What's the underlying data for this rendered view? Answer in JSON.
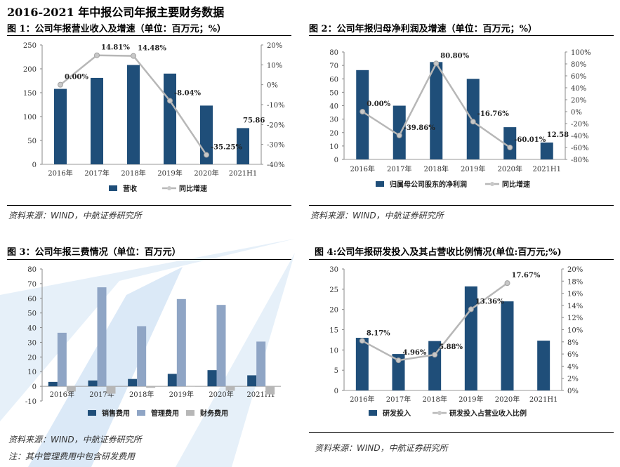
{
  "page": {
    "title": "2016-2021 年中报公司年报主要财务数据"
  },
  "colors": {
    "bar": "#1f4e79",
    "line": "#b7b7b7",
    "mgmt": "#8fa5c5",
    "fin": "#b7b7b7",
    "bg_shape": "#c5dcf1"
  },
  "chart_data": [
    {
      "id": "fig1",
      "type": "bar-line",
      "title": "图 1：公司年报营业收入及增速（单位：百万元；%）",
      "categories": [
        "2016年",
        "2017年",
        "2018年",
        "2019年",
        "2020年",
        "2021H1"
      ],
      "series": [
        {
          "name": "营收",
          "type": "bar",
          "axis": "left",
          "values": [
            158,
            181,
            208,
            190,
            123,
            75.86
          ]
        },
        {
          "name": "同比增速",
          "type": "line",
          "axis": "right",
          "values": [
            0.0,
            14.81,
            14.48,
            -8.04,
            -35.25,
            null
          ]
        }
      ],
      "data_labels": [
        {
          "series": 1,
          "index": 0,
          "text": "0.00%"
        },
        {
          "series": 1,
          "index": 1,
          "text": "14.81%"
        },
        {
          "series": 1,
          "index": 2,
          "text": "14.48%"
        },
        {
          "series": 1,
          "index": 3,
          "text": "-8.04%"
        },
        {
          "series": 1,
          "index": 4,
          "text": "-35.25%"
        },
        {
          "series": 0,
          "index": 5,
          "text": "75.86"
        }
      ],
      "y_left": {
        "min": 0,
        "max": 250,
        "ticks": [
          "0",
          "50",
          "100",
          "150",
          "200",
          "250"
        ]
      },
      "y_right": {
        "min": -40,
        "max": 20,
        "ticks": [
          "-40%",
          "-30%",
          "-20%",
          "-10%",
          "0%",
          "10%",
          "20%"
        ]
      },
      "legend": "bottom",
      "source": "资料来源：WIND，中航证券研究所"
    },
    {
      "id": "fig2",
      "type": "bar-line",
      "title": "图 2：公司年报归母净利润及增速（单位：百万元；%）",
      "categories": [
        "2016年",
        "2017年",
        "2018年",
        "2019年",
        "2020年",
        "2021H1"
      ],
      "series": [
        {
          "name": "归属母公司股东的净利润",
          "type": "bar",
          "axis": "left",
          "values": [
            66.5,
            40,
            72.5,
            60,
            24,
            12.58
          ]
        },
        {
          "name": "同比增速",
          "type": "line",
          "axis": "right",
          "values": [
            0.0,
            -39.86,
            80.8,
            -16.76,
            -60.01,
            null
          ]
        }
      ],
      "data_labels": [
        {
          "series": 1,
          "index": 0,
          "text": "0.00%"
        },
        {
          "series": 1,
          "index": 1,
          "text": "-39.86%"
        },
        {
          "series": 1,
          "index": 2,
          "text": "80.80%"
        },
        {
          "series": 1,
          "index": 3,
          "text": "-16.76%"
        },
        {
          "series": 1,
          "index": 4,
          "text": "-60.01%"
        },
        {
          "series": 0,
          "index": 5,
          "text": "12.58"
        }
      ],
      "y_left": {
        "min": 0,
        "max": 80,
        "ticks": [
          "0",
          "10",
          "20",
          "30",
          "40",
          "50",
          "60",
          "70",
          "80"
        ]
      },
      "y_right": {
        "min": -80,
        "max": 100,
        "ticks": [
          "-80%",
          "-60%",
          "-40%",
          "-20%",
          "0%",
          "20%",
          "40%",
          "60%",
          "80%",
          "100%"
        ]
      },
      "legend": "bottom",
      "source": "资料来源：WIND，中航证券研究所"
    },
    {
      "id": "fig3",
      "type": "bar",
      "title": "图 3：公司年报三费情况（单位：百万元）",
      "categories": [
        "2016年",
        "2017年",
        "2018年",
        "2019年",
        "2020年",
        "2021H1"
      ],
      "series": [
        {
          "name": "销售费用",
          "type": "bar",
          "axis": "left",
          "values": [
            3,
            4,
            5,
            8.5,
            11,
            7.5
          ]
        },
        {
          "name": "管理费用",
          "type": "bar",
          "axis": "left",
          "values": [
            36.5,
            67.5,
            41,
            59.5,
            55.5,
            30.5
          ]
        },
        {
          "name": "财务费用",
          "type": "bar",
          "axis": "left",
          "values": [
            -3.5,
            -5,
            -1,
            0,
            -3,
            -5.5
          ]
        }
      ],
      "y_left": {
        "min": -10,
        "max": 80,
        "ticks": [
          "-10",
          "0",
          "10",
          "20",
          "30",
          "40",
          "50",
          "60",
          "70",
          "80"
        ]
      },
      "legend": "bottom",
      "source": "资料来源：WIND，中航证券研究所",
      "note": "注：其中管理费用中包含研发费用"
    },
    {
      "id": "fig4",
      "type": "bar-line",
      "title": "图 4:公司年报研发投入及其占营收比例情况(单位:百万元;%)",
      "categories": [
        "2016年",
        "2017年",
        "2018年",
        "2019年",
        "2020年",
        "2021H1"
      ],
      "series": [
        {
          "name": "研发投入",
          "type": "bar",
          "axis": "left",
          "values": [
            13,
            9,
            12.2,
            25.7,
            22,
            12.3
          ]
        },
        {
          "name": "研发投入占营业收入比例",
          "type": "line",
          "axis": "right",
          "values": [
            8.17,
            4.96,
            5.88,
            13.36,
            17.67,
            null
          ]
        }
      ],
      "data_labels": [
        {
          "series": 1,
          "index": 0,
          "text": "8.17%"
        },
        {
          "series": 1,
          "index": 1,
          "text": "4.96%"
        },
        {
          "series": 1,
          "index": 2,
          "text": "5.88%"
        },
        {
          "series": 1,
          "index": 3,
          "text": "13.36%"
        },
        {
          "series": 1,
          "index": 4,
          "text": "17.67%"
        }
      ],
      "y_left": {
        "min": 0,
        "max": 30,
        "ticks": [
          "0",
          "5",
          "10",
          "15",
          "20",
          "25",
          "30"
        ]
      },
      "y_right": {
        "min": 0,
        "max": 20,
        "ticks": [
          "0%",
          "2%",
          "4%",
          "6%",
          "8%",
          "10%",
          "12%",
          "14%",
          "16%",
          "18%",
          "20%"
        ]
      },
      "legend": "bottom",
      "source": "资料来源：WIND，中航证券研究所"
    }
  ]
}
